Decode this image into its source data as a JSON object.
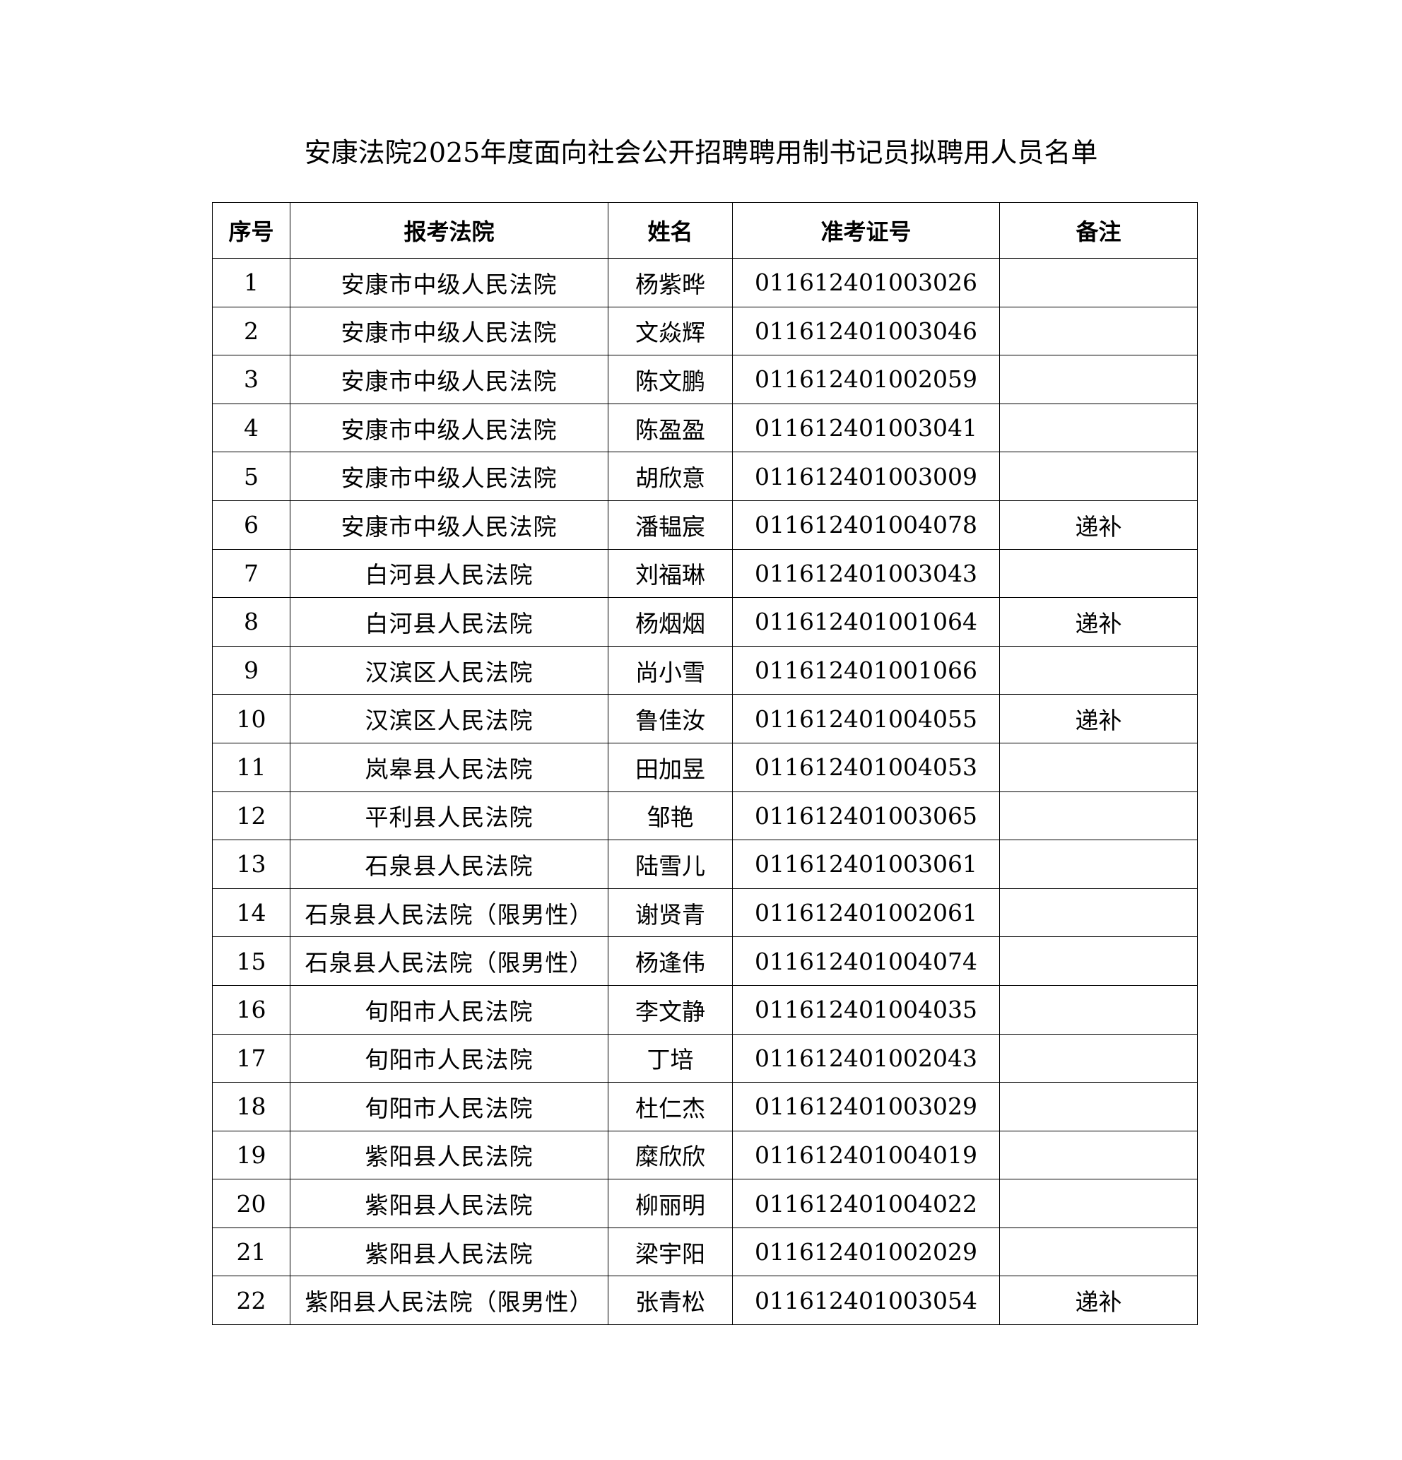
{
  "title": "安康法院2025年度面向社会公开招聘聘用制书记员拟聘用人员名单",
  "table": {
    "headers": [
      "序号",
      "报考法院",
      "姓名",
      "准考证号",
      "备注"
    ],
    "rows": [
      {
        "no": "1",
        "court": "安康市中级人民法院",
        "name": "杨紫晔",
        "ticket": "011612401003026",
        "note": ""
      },
      {
        "no": "2",
        "court": "安康市中级人民法院",
        "name": "文焱辉",
        "ticket": "011612401003046",
        "note": ""
      },
      {
        "no": "3",
        "court": "安康市中级人民法院",
        "name": "陈文鹏",
        "ticket": "011612401002059",
        "note": ""
      },
      {
        "no": "4",
        "court": "安康市中级人民法院",
        "name": "陈盈盈",
        "ticket": "011612401003041",
        "note": ""
      },
      {
        "no": "5",
        "court": "安康市中级人民法院",
        "name": "胡欣意",
        "ticket": "011612401003009",
        "note": ""
      },
      {
        "no": "6",
        "court": "安康市中级人民法院",
        "name": "潘韫宸",
        "ticket": "011612401004078",
        "note": "递补"
      },
      {
        "no": "7",
        "court": "白河县人民法院",
        "name": "刘福琳",
        "ticket": "011612401003043",
        "note": ""
      },
      {
        "no": "8",
        "court": "白河县人民法院",
        "name": "杨烟烟",
        "ticket": "011612401001064",
        "note": "递补"
      },
      {
        "no": "9",
        "court": "汉滨区人民法院",
        "name": "尚小雪",
        "ticket": "011612401001066",
        "note": ""
      },
      {
        "no": "10",
        "court": "汉滨区人民法院",
        "name": "鲁佳汝",
        "ticket": "011612401004055",
        "note": "递补"
      },
      {
        "no": "11",
        "court": "岚皋县人民法院",
        "name": "田加昱",
        "ticket": "011612401004053",
        "note": ""
      },
      {
        "no": "12",
        "court": "平利县人民法院",
        "name": "邹艳",
        "ticket": "011612401003065",
        "note": ""
      },
      {
        "no": "13",
        "court": "石泉县人民法院",
        "name": "陆雪儿",
        "ticket": "011612401003061",
        "note": ""
      },
      {
        "no": "14",
        "court": "石泉县人民法院（限男性）",
        "name": "谢贤青",
        "ticket": "011612401002061",
        "note": ""
      },
      {
        "no": "15",
        "court": "石泉县人民法院（限男性）",
        "name": "杨逢伟",
        "ticket": "011612401004074",
        "note": ""
      },
      {
        "no": "16",
        "court": "旬阳市人民法院",
        "name": "李文静",
        "ticket": "011612401004035",
        "note": ""
      },
      {
        "no": "17",
        "court": "旬阳市人民法院",
        "name": "丁培",
        "ticket": "011612401002043",
        "note": ""
      },
      {
        "no": "18",
        "court": "旬阳市人民法院",
        "name": "杜仁杰",
        "ticket": "011612401003029",
        "note": ""
      },
      {
        "no": "19",
        "court": "紫阳县人民法院",
        "name": "糜欣欣",
        "ticket": "011612401004019",
        "note": ""
      },
      {
        "no": "20",
        "court": "紫阳县人民法院",
        "name": "柳丽明",
        "ticket": "011612401004022",
        "note": ""
      },
      {
        "no": "21",
        "court": "紫阳县人民法院",
        "name": "梁宇阳",
        "ticket": "011612401002029",
        "note": ""
      },
      {
        "no": "22",
        "court": "紫阳县人民法院（限男性）",
        "name": "张青松",
        "ticket": "011612401003054",
        "note": "递补"
      }
    ]
  }
}
